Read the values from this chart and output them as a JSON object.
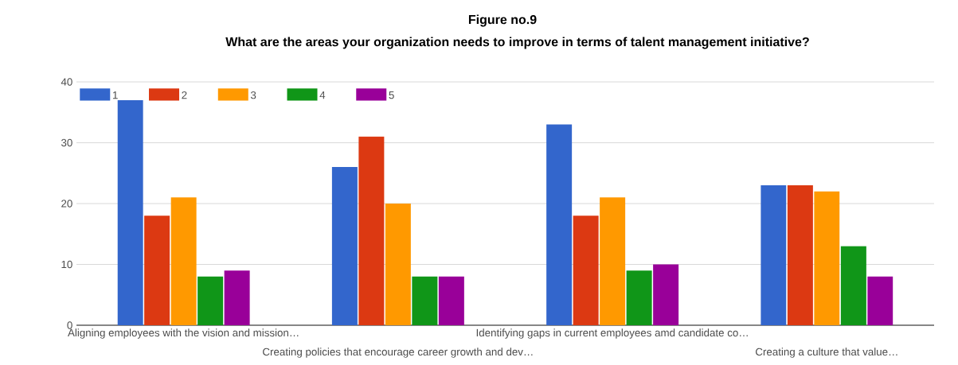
{
  "chart_data": {
    "type": "bar",
    "title": "Figure no.9",
    "subtitle": "What are the areas your organization needs to improve in terms of talent management initiative?",
    "categories": [
      "Aligning employees with the vision and mission…",
      "Creating policies that encourage career growth and dev…",
      "Identifying gaps in current employees amd candidate co…",
      "Creating a culture that value…"
    ],
    "series": [
      {
        "name": "1",
        "color": "#3366cc",
        "values": [
          37,
          26,
          33,
          23
        ]
      },
      {
        "name": "2",
        "color": "#dc3912",
        "values": [
          18,
          31,
          18,
          23
        ]
      },
      {
        "name": "3",
        "color": "#ff9900",
        "values": [
          21,
          20,
          21,
          22
        ]
      },
      {
        "name": "4",
        "color": "#109618",
        "values": [
          8,
          8,
          9,
          13
        ]
      },
      {
        "name": "5",
        "color": "#990099",
        "values": [
          9,
          8,
          10,
          8
        ]
      }
    ],
    "ylim": [
      0,
      40
    ],
    "yticks": [
      0,
      10,
      20,
      30,
      40
    ],
    "grid": "y",
    "legend": "top left"
  }
}
